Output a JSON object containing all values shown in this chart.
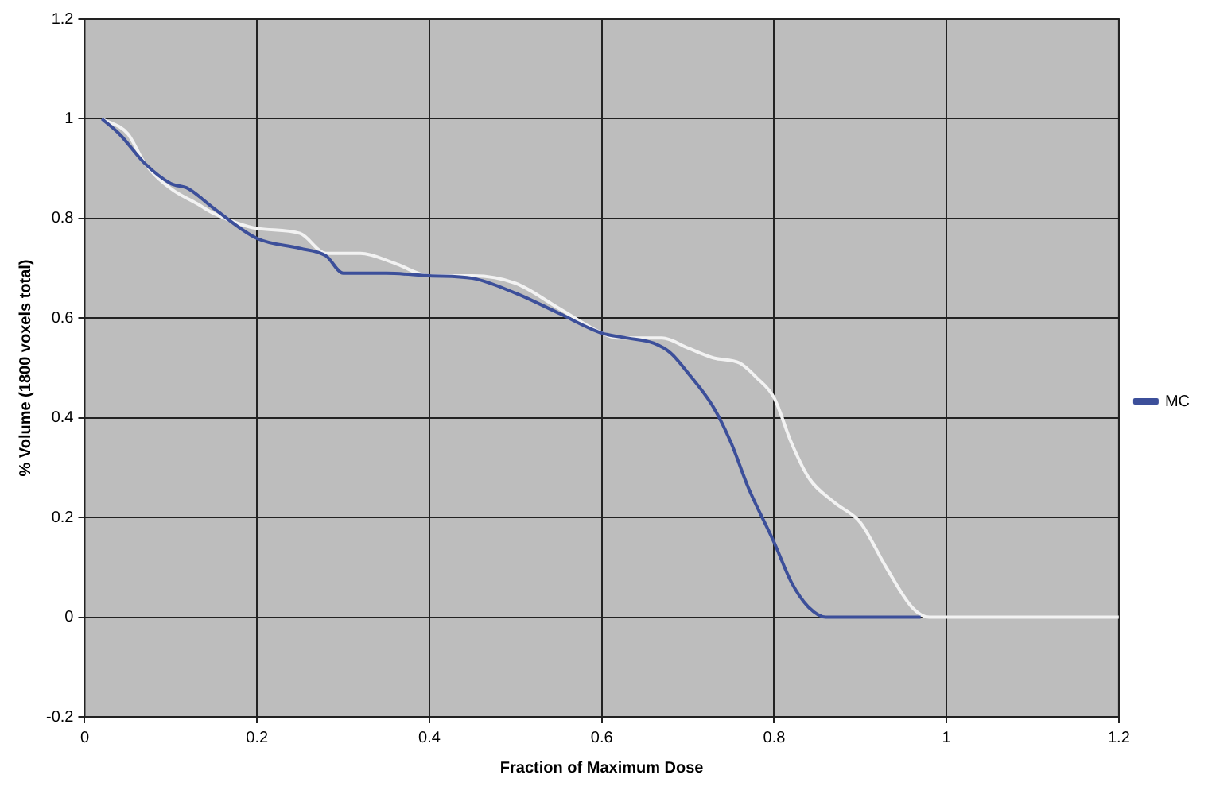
{
  "chart_data": {
    "type": "line",
    "xlabel": "Fraction of Maximum Dose",
    "ylabel": "% Volume (1800 voxels total)",
    "xlim": [
      0,
      1.2
    ],
    "xticks": [
      0,
      0.2,
      0.4,
      0.6,
      0.8,
      1,
      1.2
    ],
    "ylim": [
      -0.2,
      1.2
    ],
    "yticks": [
      -0.2,
      0,
      0.2,
      0.4,
      0.6,
      0.8,
      1,
      1.2
    ],
    "grid": true,
    "legend": "right",
    "marker": "none",
    "series": [
      {
        "name": "MC",
        "color": "#3c4f9a",
        "x": [
          0.02,
          0.04,
          0.07,
          0.1,
          0.12,
          0.15,
          0.2,
          0.25,
          0.28,
          0.3,
          0.35,
          0.4,
          0.45,
          0.5,
          0.55,
          0.6,
          0.63,
          0.66,
          0.68,
          0.7,
          0.73,
          0.75,
          0.77,
          0.8,
          0.82,
          0.84,
          0.86,
          0.9,
          0.97
        ],
        "values": [
          1,
          0.97,
          0.91,
          0.87,
          0.86,
          0.82,
          0.76,
          0.74,
          0.725,
          0.69,
          0.69,
          0.685,
          0.68,
          0.65,
          0.61,
          0.57,
          0.56,
          0.55,
          0.53,
          0.49,
          0.42,
          0.35,
          0.26,
          0.15,
          0.07,
          0.02,
          0,
          0,
          0
        ]
      },
      {
        "color": "#f2f2f2",
        "x": [
          0.02,
          0.05,
          0.07,
          0.1,
          0.13,
          0.15,
          0.2,
          0.25,
          0.28,
          0.32,
          0.36,
          0.4,
          0.45,
          0.5,
          0.55,
          0.6,
          0.62,
          0.67,
          0.7,
          0.73,
          0.76,
          0.78,
          0.8,
          0.82,
          0.84,
          0.87,
          0.9,
          0.93,
          0.96,
          0.98,
          1,
          1.2
        ],
        "values": [
          1,
          0.97,
          0.91,
          0.86,
          0.83,
          0.81,
          0.78,
          0.77,
          0.73,
          0.73,
          0.71,
          0.685,
          0.685,
          0.67,
          0.62,
          0.57,
          0.56,
          0.56,
          0.54,
          0.52,
          0.51,
          0.48,
          0.44,
          0.35,
          0.28,
          0.23,
          0.19,
          0.1,
          0.02,
          0,
          0,
          0
        ]
      }
    ]
  }
}
